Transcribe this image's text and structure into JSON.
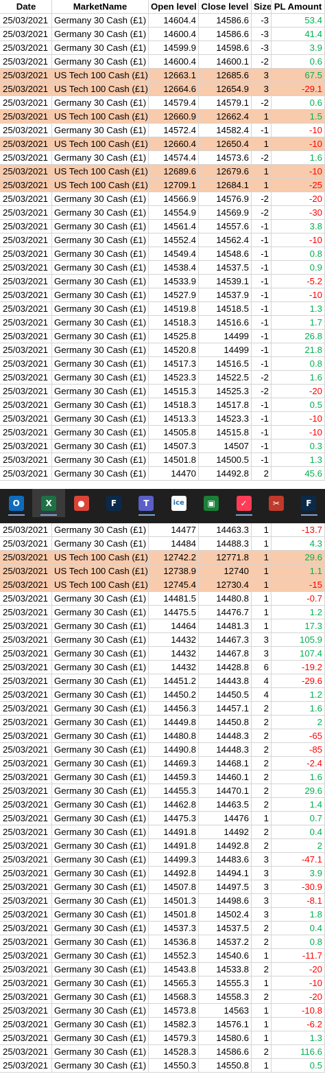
{
  "header": {
    "date": "Date",
    "market": "MarketName",
    "open": "Open level",
    "close": "Close level",
    "size": "Size",
    "pl": "PL Amount"
  },
  "top_rows": [
    {
      "date": "25/03/2021",
      "market": "Germany 30 Cash (£1)",
      "open": "14604.4",
      "close": "14586.6",
      "size": "-3",
      "pl": "53.4",
      "hl": false
    },
    {
      "date": "25/03/2021",
      "market": "Germany 30 Cash (£1)",
      "open": "14600.4",
      "close": "14586.6",
      "size": "-3",
      "pl": "41.4",
      "hl": false
    },
    {
      "date": "25/03/2021",
      "market": "Germany 30 Cash (£1)",
      "open": "14599.9",
      "close": "14598.6",
      "size": "-3",
      "pl": "3.9",
      "hl": false
    },
    {
      "date": "25/03/2021",
      "market": "Germany 30 Cash (£1)",
      "open": "14600.4",
      "close": "14600.1",
      "size": "-2",
      "pl": "0.6",
      "hl": false
    },
    {
      "date": "25/03/2021",
      "market": "US Tech 100 Cash (£1)",
      "open": "12663.1",
      "close": "12685.6",
      "size": "3",
      "pl": "67.5",
      "hl": true
    },
    {
      "date": "25/03/2021",
      "market": "US Tech 100 Cash (£1)",
      "open": "12664.6",
      "close": "12654.9",
      "size": "3",
      "pl": "-29.1",
      "hl": true
    },
    {
      "date": "25/03/2021",
      "market": "Germany 30 Cash (£1)",
      "open": "14579.4",
      "close": "14579.1",
      "size": "-2",
      "pl": "0.6",
      "hl": false
    },
    {
      "date": "25/03/2021",
      "market": "US Tech 100 Cash (£1)",
      "open": "12660.9",
      "close": "12662.4",
      "size": "1",
      "pl": "1.5",
      "hl": true
    },
    {
      "date": "25/03/2021",
      "market": "Germany 30 Cash (£1)",
      "open": "14572.4",
      "close": "14582.4",
      "size": "-1",
      "pl": "-10",
      "hl": false
    },
    {
      "date": "25/03/2021",
      "market": "US Tech 100 Cash (£1)",
      "open": "12660.4",
      "close": "12650.4",
      "size": "1",
      "pl": "-10",
      "hl": true
    },
    {
      "date": "25/03/2021",
      "market": "Germany 30 Cash (£1)",
      "open": "14574.4",
      "close": "14573.6",
      "size": "-2",
      "pl": "1.6",
      "hl": false
    },
    {
      "date": "25/03/2021",
      "market": "US Tech 100 Cash (£1)",
      "open": "12689.6",
      "close": "12679.6",
      "size": "1",
      "pl": "-10",
      "hl": true
    },
    {
      "date": "25/03/2021",
      "market": "US Tech 100 Cash (£1)",
      "open": "12709.1",
      "close": "12684.1",
      "size": "1",
      "pl": "-25",
      "hl": true
    },
    {
      "date": "25/03/2021",
      "market": "Germany 30 Cash (£1)",
      "open": "14566.9",
      "close": "14576.9",
      "size": "-2",
      "pl": "-20",
      "hl": false
    },
    {
      "date": "25/03/2021",
      "market": "Germany 30 Cash (£1)",
      "open": "14554.9",
      "close": "14569.9",
      "size": "-2",
      "pl": "-30",
      "hl": false
    },
    {
      "date": "25/03/2021",
      "market": "Germany 30 Cash (£1)",
      "open": "14561.4",
      "close": "14557.6",
      "size": "-1",
      "pl": "3.8",
      "hl": false
    },
    {
      "date": "25/03/2021",
      "market": "Germany 30 Cash (£1)",
      "open": "14552.4",
      "close": "14562.4",
      "size": "-1",
      "pl": "-10",
      "hl": false
    },
    {
      "date": "25/03/2021",
      "market": "Germany 30 Cash (£1)",
      "open": "14549.4",
      "close": "14548.6",
      "size": "-1",
      "pl": "0.8",
      "hl": false
    },
    {
      "date": "25/03/2021",
      "market": "Germany 30 Cash (£1)",
      "open": "14538.4",
      "close": "14537.5",
      "size": "-1",
      "pl": "0.9",
      "hl": false
    },
    {
      "date": "25/03/2021",
      "market": "Germany 30 Cash (£1)",
      "open": "14533.9",
      "close": "14539.1",
      "size": "-1",
      "pl": "-5.2",
      "hl": false
    },
    {
      "date": "25/03/2021",
      "market": "Germany 30 Cash (£1)",
      "open": "14527.9",
      "close": "14537.9",
      "size": "-1",
      "pl": "-10",
      "hl": false
    },
    {
      "date": "25/03/2021",
      "market": "Germany 30 Cash (£1)",
      "open": "14519.8",
      "close": "14518.5",
      "size": "-1",
      "pl": "1.3",
      "hl": false
    },
    {
      "date": "25/03/2021",
      "market": "Germany 30 Cash (£1)",
      "open": "14518.3",
      "close": "14516.6",
      "size": "-1",
      "pl": "1.7",
      "hl": false
    },
    {
      "date": "25/03/2021",
      "market": "Germany 30 Cash (£1)",
      "open": "14525.8",
      "close": "14499",
      "size": "-1",
      "pl": "26.8",
      "hl": false
    },
    {
      "date": "25/03/2021",
      "market": "Germany 30 Cash (£1)",
      "open": "14520.8",
      "close": "14499",
      "size": "-1",
      "pl": "21.8",
      "hl": false
    },
    {
      "date": "25/03/2021",
      "market": "Germany 30 Cash (£1)",
      "open": "14517.3",
      "close": "14516.5",
      "size": "-1",
      "pl": "0.8",
      "hl": false
    },
    {
      "date": "25/03/2021",
      "market": "Germany 30 Cash (£1)",
      "open": "14523.3",
      "close": "14522.5",
      "size": "-2",
      "pl": "1.6",
      "hl": false
    },
    {
      "date": "25/03/2021",
      "market": "Germany 30 Cash (£1)",
      "open": "14515.3",
      "close": "14525.3",
      "size": "-2",
      "pl": "-20",
      "hl": false
    },
    {
      "date": "25/03/2021",
      "market": "Germany 30 Cash (£1)",
      "open": "14518.3",
      "close": "14517.8",
      "size": "-1",
      "pl": "0.5",
      "hl": false
    },
    {
      "date": "25/03/2021",
      "market": "Germany 30 Cash (£1)",
      "open": "14513.3",
      "close": "14523.3",
      "size": "-1",
      "pl": "-10",
      "hl": false
    },
    {
      "date": "25/03/2021",
      "market": "Germany 30 Cash (£1)",
      "open": "14505.8",
      "close": "14515.8",
      "size": "-1",
      "pl": "-10",
      "hl": false
    },
    {
      "date": "25/03/2021",
      "market": "Germany 30 Cash (£1)",
      "open": "14507.3",
      "close": "14507",
      "size": "-1",
      "pl": "0.3",
      "hl": false
    },
    {
      "date": "25/03/2021",
      "market": "Germany 30 Cash (£1)",
      "open": "14501.8",
      "close": "14500.5",
      "size": "-1",
      "pl": "1.3",
      "hl": false
    },
    {
      "date": "25/03/2021",
      "market": "Germany 30 Cash (£1)",
      "open": "14470",
      "close": "14492.8",
      "size": "2",
      "pl": "45.6",
      "hl": false
    }
  ],
  "bottom_rows": [
    {
      "date": "25/03/2021",
      "market": "Germany 30 Cash (£1)",
      "open": "14477",
      "close": "14463.3",
      "size": "1",
      "pl": "-13.7",
      "hl": false
    },
    {
      "date": "25/03/2021",
      "market": "Germany 30 Cash (£1)",
      "open": "14484",
      "close": "14488.3",
      "size": "1",
      "pl": "4.3",
      "hl": false
    },
    {
      "date": "25/03/2021",
      "market": "US Tech 100 Cash (£1)",
      "open": "12742.2",
      "close": "12771.8",
      "size": "1",
      "pl": "29.6",
      "hl": true
    },
    {
      "date": "25/03/2021",
      "market": "US Tech 100 Cash (£1)",
      "open": "12738.9",
      "close": "12740",
      "size": "1",
      "pl": "1.1",
      "hl": true
    },
    {
      "date": "25/03/2021",
      "market": "US Tech 100 Cash (£1)",
      "open": "12745.4",
      "close": "12730.4",
      "size": "1",
      "pl": "-15",
      "hl": true
    },
    {
      "date": "25/03/2021",
      "market": "Germany 30 Cash (£1)",
      "open": "14481.5",
      "close": "14480.8",
      "size": "1",
      "pl": "-0.7",
      "hl": false
    },
    {
      "date": "25/03/2021",
      "market": "Germany 30 Cash (£1)",
      "open": "14475.5",
      "close": "14476.7",
      "size": "1",
      "pl": "1.2",
      "hl": false
    },
    {
      "date": "25/03/2021",
      "market": "Germany 30 Cash (£1)",
      "open": "14464",
      "close": "14481.3",
      "size": "1",
      "pl": "17.3",
      "hl": false
    },
    {
      "date": "25/03/2021",
      "market": "Germany 30 Cash (£1)",
      "open": "14432",
      "close": "14467.3",
      "size": "3",
      "pl": "105.9",
      "hl": false
    },
    {
      "date": "25/03/2021",
      "market": "Germany 30 Cash (£1)",
      "open": "14432",
      "close": "14467.8",
      "size": "3",
      "pl": "107.4",
      "hl": false
    },
    {
      "date": "25/03/2021",
      "market": "Germany 30 Cash (£1)",
      "open": "14432",
      "close": "14428.8",
      "size": "6",
      "pl": "-19.2",
      "hl": false
    },
    {
      "date": "25/03/2021",
      "market": "Germany 30 Cash (£1)",
      "open": "14451.2",
      "close": "14443.8",
      "size": "4",
      "pl": "-29.6",
      "hl": false
    },
    {
      "date": "25/03/2021",
      "market": "Germany 30 Cash (£1)",
      "open": "14450.2",
      "close": "14450.5",
      "size": "4",
      "pl": "1.2",
      "hl": false
    },
    {
      "date": "25/03/2021",
      "market": "Germany 30 Cash (£1)",
      "open": "14456.3",
      "close": "14457.1",
      "size": "2",
      "pl": "1.6",
      "hl": false
    },
    {
      "date": "25/03/2021",
      "market": "Germany 30 Cash (£1)",
      "open": "14449.8",
      "close": "14450.8",
      "size": "2",
      "pl": "2",
      "hl": false
    },
    {
      "date": "25/03/2021",
      "market": "Germany 30 Cash (£1)",
      "open": "14480.8",
      "close": "14448.3",
      "size": "2",
      "pl": "-65",
      "hl": false
    },
    {
      "date": "25/03/2021",
      "market": "Germany 30 Cash (£1)",
      "open": "14490.8",
      "close": "14448.3",
      "size": "2",
      "pl": "-85",
      "hl": false
    },
    {
      "date": "25/03/2021",
      "market": "Germany 30 Cash (£1)",
      "open": "14469.3",
      "close": "14468.1",
      "size": "2",
      "pl": "-2.4",
      "hl": false
    },
    {
      "date": "25/03/2021",
      "market": "Germany 30 Cash (£1)",
      "open": "14459.3",
      "close": "14460.1",
      "size": "2",
      "pl": "1.6",
      "hl": false
    },
    {
      "date": "25/03/2021",
      "market": "Germany 30 Cash (£1)",
      "open": "14455.3",
      "close": "14470.1",
      "size": "2",
      "pl": "29.6",
      "hl": false
    },
    {
      "date": "25/03/2021",
      "market": "Germany 30 Cash (£1)",
      "open": "14462.8",
      "close": "14463.5",
      "size": "2",
      "pl": "1.4",
      "hl": false
    },
    {
      "date": "25/03/2021",
      "market": "Germany 30 Cash (£1)",
      "open": "14475.3",
      "close": "14476",
      "size": "1",
      "pl": "0.7",
      "hl": false
    },
    {
      "date": "25/03/2021",
      "market": "Germany 30 Cash (£1)",
      "open": "14491.8",
      "close": "14492",
      "size": "2",
      "pl": "0.4",
      "hl": false
    },
    {
      "date": "25/03/2021",
      "market": "Germany 30 Cash (£1)",
      "open": "14491.8",
      "close": "14492.8",
      "size": "2",
      "pl": "2",
      "hl": false
    },
    {
      "date": "25/03/2021",
      "market": "Germany 30 Cash (£1)",
      "open": "14499.3",
      "close": "14483.6",
      "size": "3",
      "pl": "-47.1",
      "hl": false
    },
    {
      "date": "25/03/2021",
      "market": "Germany 30 Cash (£1)",
      "open": "14492.8",
      "close": "14494.1",
      "size": "3",
      "pl": "3.9",
      "hl": false
    },
    {
      "date": "25/03/2021",
      "market": "Germany 30 Cash (£1)",
      "open": "14507.8",
      "close": "14497.5",
      "size": "3",
      "pl": "-30.9",
      "hl": false
    },
    {
      "date": "25/03/2021",
      "market": "Germany 30 Cash (£1)",
      "open": "14501.3",
      "close": "14498.6",
      "size": "3",
      "pl": "-8.1",
      "hl": false
    },
    {
      "date": "25/03/2021",
      "market": "Germany 30 Cash (£1)",
      "open": "14501.8",
      "close": "14502.4",
      "size": "3",
      "pl": "1.8",
      "hl": false
    },
    {
      "date": "25/03/2021",
      "market": "Germany 30 Cash (£1)",
      "open": "14537.3",
      "close": "14537.5",
      "size": "2",
      "pl": "0.4",
      "hl": false
    },
    {
      "date": "25/03/2021",
      "market": "Germany 30 Cash (£1)",
      "open": "14536.8",
      "close": "14537.2",
      "size": "2",
      "pl": "0.8",
      "hl": false
    },
    {
      "date": "25/03/2021",
      "market": "Germany 30 Cash (£1)",
      "open": "14552.3",
      "close": "14540.6",
      "size": "1",
      "pl": "-11.7",
      "hl": false
    },
    {
      "date": "25/03/2021",
      "market": "Germany 30 Cash (£1)",
      "open": "14543.8",
      "close": "14533.8",
      "size": "2",
      "pl": "-20",
      "hl": false
    },
    {
      "date": "25/03/2021",
      "market": "Germany 30 Cash (£1)",
      "open": "14565.3",
      "close": "14555.3",
      "size": "1",
      "pl": "-10",
      "hl": false
    },
    {
      "date": "25/03/2021",
      "market": "Germany 30 Cash (£1)",
      "open": "14568.3",
      "close": "14558.3",
      "size": "2",
      "pl": "-20",
      "hl": false
    },
    {
      "date": "25/03/2021",
      "market": "Germany 30 Cash (£1)",
      "open": "14573.8",
      "close": "14563",
      "size": "1",
      "pl": "-10.8",
      "hl": false
    },
    {
      "date": "25/03/2021",
      "market": "Germany 30 Cash (£1)",
      "open": "14582.3",
      "close": "14576.1",
      "size": "1",
      "pl": "-6.2",
      "hl": false
    },
    {
      "date": "25/03/2021",
      "market": "Germany 30 Cash (£1)",
      "open": "14579.3",
      "close": "14580.6",
      "size": "1",
      "pl": "1.3",
      "hl": false
    },
    {
      "date": "25/03/2021",
      "market": "Germany 30 Cash (£1)",
      "open": "14528.3",
      "close": "14586.6",
      "size": "2",
      "pl": "116.6",
      "hl": false
    },
    {
      "date": "25/03/2021",
      "market": "Germany 30 Cash (£1)",
      "open": "14550.3",
      "close": "14550.8",
      "size": "1",
      "pl": "0.5",
      "hl": false
    }
  ],
  "taskbar": [
    {
      "name": "outlook-icon",
      "glyph": "O",
      "color": "#0f6cbd",
      "active": false,
      "under": true
    },
    {
      "name": "excel-icon",
      "glyph": "X",
      "color": "#1e7145",
      "active": true,
      "under": true
    },
    {
      "name": "chrome-icon",
      "glyph": "●",
      "color": "#db4437",
      "active": false,
      "under": false
    },
    {
      "name": "app-f-icon",
      "glyph": "F",
      "color": "#0b2a4a",
      "active": false,
      "under": false
    },
    {
      "name": "teams-icon",
      "glyph": "T",
      "color": "#5b5fc7",
      "active": false,
      "under": true
    },
    {
      "name": "ice-icon",
      "glyph": "ice",
      "color": "#ffffff",
      "active": false,
      "under": false
    },
    {
      "name": "monitor-app-icon",
      "glyph": "▣",
      "color": "#1a7f37",
      "active": false,
      "under": false
    },
    {
      "name": "monday-icon",
      "glyph": "✓",
      "color": "#ff3d57",
      "active": false,
      "under": true
    },
    {
      "name": "snipping-tool-icon",
      "glyph": "✂",
      "color": "#c0392b",
      "active": false,
      "under": false
    },
    {
      "name": "app-f2-icon",
      "glyph": "F",
      "color": "#0b2a4a",
      "active": false,
      "under": true
    }
  ]
}
